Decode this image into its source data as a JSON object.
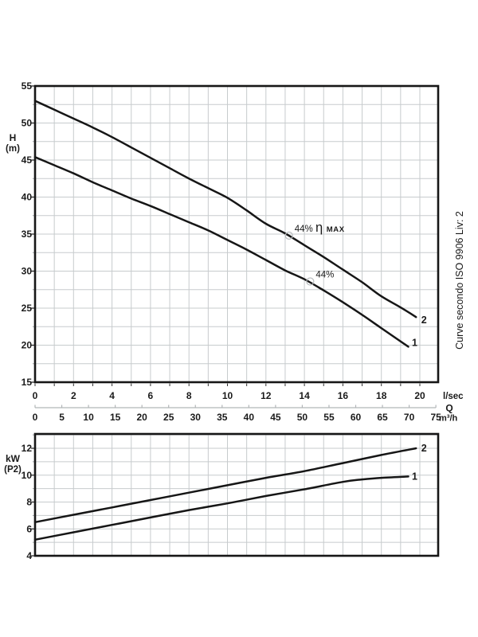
{
  "side_note": "Curve secondo ISO 9906 Liv: 2",
  "colors": {
    "background": "#ffffff",
    "curve": "#161616",
    "frame": "#161616",
    "grid": "#c7cbcd",
    "secondary_axis": "#b2b6b8",
    "marker": "#b9bdbf",
    "text": "#1a1a1a"
  },
  "chart_data": [
    {
      "id": "head",
      "type": "line",
      "title": "",
      "ylabel": "H",
      "ylabel_unit": "(m)",
      "ylim": [
        15,
        55
      ],
      "yticks": [
        55,
        50,
        45,
        40,
        35,
        30,
        25,
        20,
        15
      ],
      "grid": {
        "x_step": 1,
        "y_step": 2.5
      },
      "x_axes": [
        {
          "unit": "l/sec",
          "ticks": [
            0,
            2,
            4,
            6,
            8,
            10,
            12,
            14,
            16,
            18,
            20
          ]
        },
        {
          "unit": "m³/h",
          "quantity": "Q",
          "ticks": [
            0,
            5,
            10,
            15,
            20,
            25,
            30,
            35,
            40,
            45,
            50,
            55,
            60,
            65,
            70,
            75
          ]
        }
      ],
      "series": [
        {
          "name": "2",
          "points": [
            [
              0,
              53
            ],
            [
              1,
              51.8
            ],
            [
              2,
              50.6
            ],
            [
              3,
              49.4
            ],
            [
              4,
              48.1
            ],
            [
              5,
              46.7
            ],
            [
              6,
              45.3
            ],
            [
              7,
              43.9
            ],
            [
              8,
              42.5
            ],
            [
              9,
              41.2
            ],
            [
              10,
              39.9
            ],
            [
              11,
              38.2
            ],
            [
              12,
              36.4
            ],
            [
              13,
              35.1
            ],
            [
              14,
              33.5
            ],
            [
              15,
              31.9
            ],
            [
              16,
              30.2
            ],
            [
              17,
              28.5
            ],
            [
              18,
              26.6
            ],
            [
              19,
              25.1
            ],
            [
              19.8,
              23.8
            ]
          ]
        },
        {
          "name": "1",
          "points": [
            [
              0,
              45.4
            ],
            [
              1,
              44.3
            ],
            [
              2,
              43.2
            ],
            [
              3,
              42
            ],
            [
              4,
              40.9
            ],
            [
              5,
              39.8
            ],
            [
              6,
              38.8
            ],
            [
              7,
              37.7
            ],
            [
              8,
              36.6
            ],
            [
              9,
              35.5
            ],
            [
              10,
              34.2
            ],
            [
              11,
              32.9
            ],
            [
              12,
              31.5
            ],
            [
              13,
              30.1
            ],
            [
              14,
              28.9
            ],
            [
              15,
              27.4
            ],
            [
              16,
              25.8
            ],
            [
              17,
              24.1
            ],
            [
              18,
              22.3
            ],
            [
              19.4,
              19.8
            ]
          ]
        }
      ],
      "annotations": [
        {
          "series": "2",
          "q": 13.2,
          "value": 34.8,
          "pre": "44%",
          "sym": "η",
          "post": "MAX"
        },
        {
          "series": "1",
          "q": 14.3,
          "value": 28.6,
          "pre": "44%",
          "sym": "",
          "post": ""
        }
      ]
    },
    {
      "id": "power",
      "type": "line",
      "title": "",
      "ylabel": "kW",
      "ylabel_unit": "(P2)",
      "ylim": [
        4,
        13.1
      ],
      "yticks": [
        12,
        10,
        8,
        6,
        4
      ],
      "grid": {
        "x_step": 1,
        "y_step": 1
      },
      "series": [
        {
          "name": "2",
          "points": [
            [
              0,
              6.5
            ],
            [
              2,
              7.05
            ],
            [
              4,
              7.6
            ],
            [
              6,
              8.15
            ],
            [
              8,
              8.7
            ],
            [
              10,
              9.25
            ],
            [
              12,
              9.8
            ],
            [
              14,
              10.3
            ],
            [
              16,
              10.9
            ],
            [
              18,
              11.5
            ],
            [
              19.8,
              12
            ]
          ]
        },
        {
          "name": "1",
          "points": [
            [
              0,
              5.2
            ],
            [
              2,
              5.75
            ],
            [
              4,
              6.3
            ],
            [
              6,
              6.85
            ],
            [
              8,
              7.4
            ],
            [
              10,
              7.9
            ],
            [
              12,
              8.45
            ],
            [
              14,
              8.95
            ],
            [
              16,
              9.5
            ],
            [
              17,
              9.68
            ],
            [
              18,
              9.8
            ],
            [
              19.4,
              9.9
            ]
          ]
        }
      ]
    }
  ]
}
